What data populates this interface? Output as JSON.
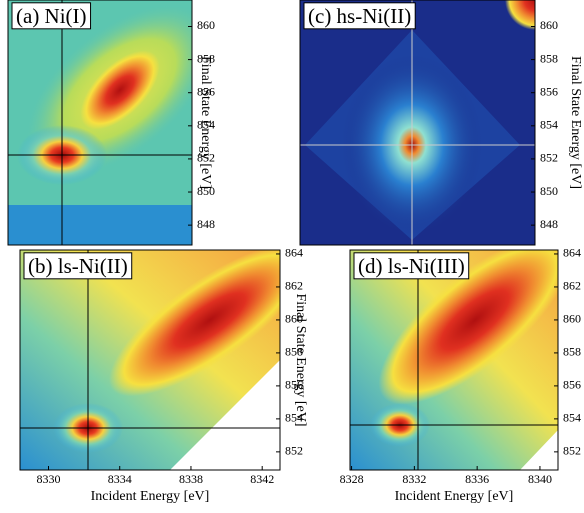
{
  "chart_data": [
    {
      "type": "heatmap",
      "title": "(a) Ni(I)",
      "y_label": "Final State Energy [eV]",
      "ylim": [
        846.8,
        861.6
      ],
      "yticks": [
        848,
        850,
        852,
        854,
        856,
        858,
        860
      ]
    },
    {
      "type": "heatmap",
      "title": "(c) hs-Ni(II)",
      "y_label": "Final State Energy [eV]",
      "ylim": [
        846.8,
        861.6
      ],
      "yticks": [
        848,
        850,
        852,
        854,
        856,
        858,
        860
      ]
    },
    {
      "type": "heatmap",
      "title": "(b) ls-Ni(II)",
      "y_label": "Final State Energy [eV]",
      "x_label": "Incident Energy [eV]",
      "xlim": [
        8328.4,
        8343.0
      ],
      "xticks": [
        8330,
        8334,
        8338,
        8342
      ],
      "ylim": [
        850.9,
        864.24
      ],
      "yticks": [
        852,
        854,
        856,
        858,
        860,
        862,
        864
      ]
    },
    {
      "type": "heatmap",
      "title": "(d) ls-Ni(III)",
      "x_label": "Incident Energy [eV]",
      "xlim": [
        8327.9,
        8341.15
      ],
      "xticks": [
        8328,
        8332,
        8336,
        8340
      ],
      "ylim": [
        850.9,
        864.24
      ],
      "yticks": [
        852,
        854,
        856,
        858,
        860,
        862,
        864
      ]
    }
  ]
}
